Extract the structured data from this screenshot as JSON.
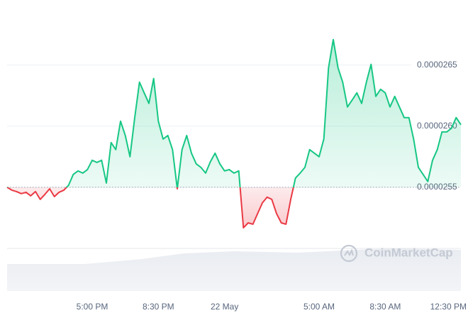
{
  "chart_data": {
    "type": "line",
    "categories": [
      null,
      null,
      null,
      null,
      null,
      null,
      null,
      null,
      null,
      null,
      null,
      null,
      null,
      null,
      null,
      null,
      null,
      null,
      "5:00 PM",
      null,
      null,
      null,
      null,
      null,
      null,
      null,
      null,
      null,
      null,
      null,
      null,
      null,
      "8:30 PM",
      null,
      null,
      null,
      null,
      null,
      null,
      null,
      null,
      null,
      null,
      null,
      null,
      null,
      "22 May",
      null,
      null,
      null,
      null,
      null,
      null,
      null,
      null,
      null,
      null,
      null,
      null,
      null,
      null,
      null,
      null,
      null,
      null,
      null,
      "5:00 AM",
      null,
      null,
      null,
      null,
      null,
      null,
      null,
      null,
      null,
      null,
      null,
      null,
      null,
      "8:30 AM",
      null,
      null,
      null,
      null,
      null,
      null,
      null,
      null,
      null,
      null,
      null,
      null,
      null,
      null,
      null,
      "12:30 PM"
    ],
    "values": [
      2.55e-05,
      2.5477e-05,
      2.5465e-05,
      2.5448e-05,
      2.5459e-05,
      2.543e-05,
      2.5465e-05,
      2.5401e-05,
      2.5442e-05,
      2.5488e-05,
      2.5424e-05,
      2.5459e-05,
      2.5477e-05,
      2.5517e-05,
      2.5605e-05,
      2.5634e-05,
      2.5616e-05,
      2.5645e-05,
      2.5721e-05,
      2.5703e-05,
      2.5721e-05,
      2.5535e-05,
      2.5866e-05,
      2.5808e-05,
      2.6041e-05,
      2.5924e-05,
      2.575e-05,
      2.607e-05,
      2.636e-05,
      2.6273e-05,
      2.6186e-05,
      2.639e-05,
      2.6041e-05,
      2.5895e-05,
      2.5924e-05,
      2.5808e-05,
      2.5488e-05,
      2.5808e-05,
      2.5924e-05,
      2.5779e-05,
      2.5692e-05,
      2.5663e-05,
      2.5616e-05,
      2.5709e-05,
      2.5779e-05,
      2.5692e-05,
      2.5634e-05,
      2.5645e-05,
      2.5616e-05,
      2.5634e-05,
      2.5169e-05,
      2.5209e-05,
      2.5198e-05,
      2.5285e-05,
      2.5372e-05,
      2.5419e-05,
      2.5401e-05,
      2.5285e-05,
      2.5209e-05,
      2.5198e-05,
      2.5401e-05,
      2.5576e-05,
      2.5616e-05,
      2.5663e-05,
      2.5808e-05,
      2.5779e-05,
      2.575e-05,
      2.5895e-05,
      2.6477e-05,
      2.6709e-05,
      2.6477e-05,
      2.636e-05,
      2.6157e-05,
      2.6215e-05,
      2.6273e-05,
      2.6186e-05,
      2.636e-05,
      2.6506e-05,
      2.6244e-05,
      2.6302e-05,
      2.6273e-05,
      2.6157e-05,
      2.6244e-05,
      2.6157e-05,
      2.607e-05,
      2.607e-05,
      2.5895e-05,
      2.5663e-05,
      2.5605e-05,
      2.5547e-05,
      2.5721e-05,
      2.5808e-05,
      2.5953e-05,
      2.5953e-05,
      2.5983e-05,
      2.607e-05,
      2.6012e-05
    ],
    "baseline": 2.55e-05,
    "up_color": "#16c784",
    "down_color": "#ea3943",
    "ylim": [
      2.5e-05,
      2.68e-05
    ],
    "yticks": [
      2.55e-05,
      {
        "value": 2.6e-05,
        "label": "0.0000260"
      },
      2.65e-05
    ],
    "grid": true,
    "watermark": "CoinMarketCap"
  }
}
